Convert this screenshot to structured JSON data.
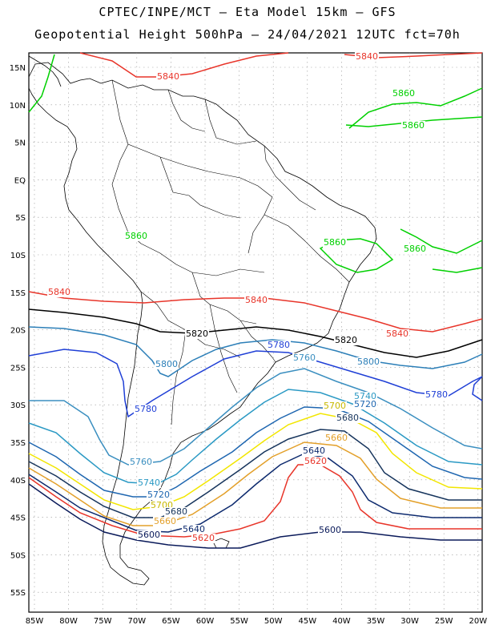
{
  "title_line1": "CPTEC/INPE/MCT –  Eta Model 15km – GFS",
  "title_line2": "Geopotential Height 500hPa – 24/04/2021 12UTC fct=70h",
  "lat_labels": [
    "15N",
    "10N",
    "5N",
    "EQ",
    "5S",
    "10S",
    "15S",
    "20S",
    "25S",
    "30S",
    "35S",
    "40S",
    "45S",
    "50S",
    "55S"
  ],
  "lon_labels": [
    "85W",
    "80W",
    "75W",
    "70W",
    "65W",
    "60W",
    "55W",
    "50W",
    "45W",
    "40W",
    "35W",
    "30W",
    "25W",
    "20W"
  ],
  "contour_levels": [
    {
      "value": "5860",
      "color": "#00d000"
    },
    {
      "value": "5840",
      "color": "#e8352a"
    },
    {
      "value": "5820",
      "color": "#000000"
    },
    {
      "value": "5800",
      "color": "#2c7fb8"
    },
    {
      "value": "5780",
      "color": "#1f3fd6"
    },
    {
      "value": "5760",
      "color": "#3b8fc0"
    },
    {
      "value": "5740",
      "color": "#2a99c4"
    },
    {
      "value": "5720",
      "color": "#1e66b0"
    },
    {
      "value": "5700",
      "color": "#f2e600"
    },
    {
      "value": "5680",
      "color": "#16345c"
    },
    {
      "value": "5660",
      "color": "#e3a02a"
    },
    {
      "value": "5640",
      "color": "#0d2a6e"
    },
    {
      "value": "5620",
      "color": "#e8352a"
    },
    {
      "value": "5600",
      "color": "#0a1a5a"
    }
  ]
}
